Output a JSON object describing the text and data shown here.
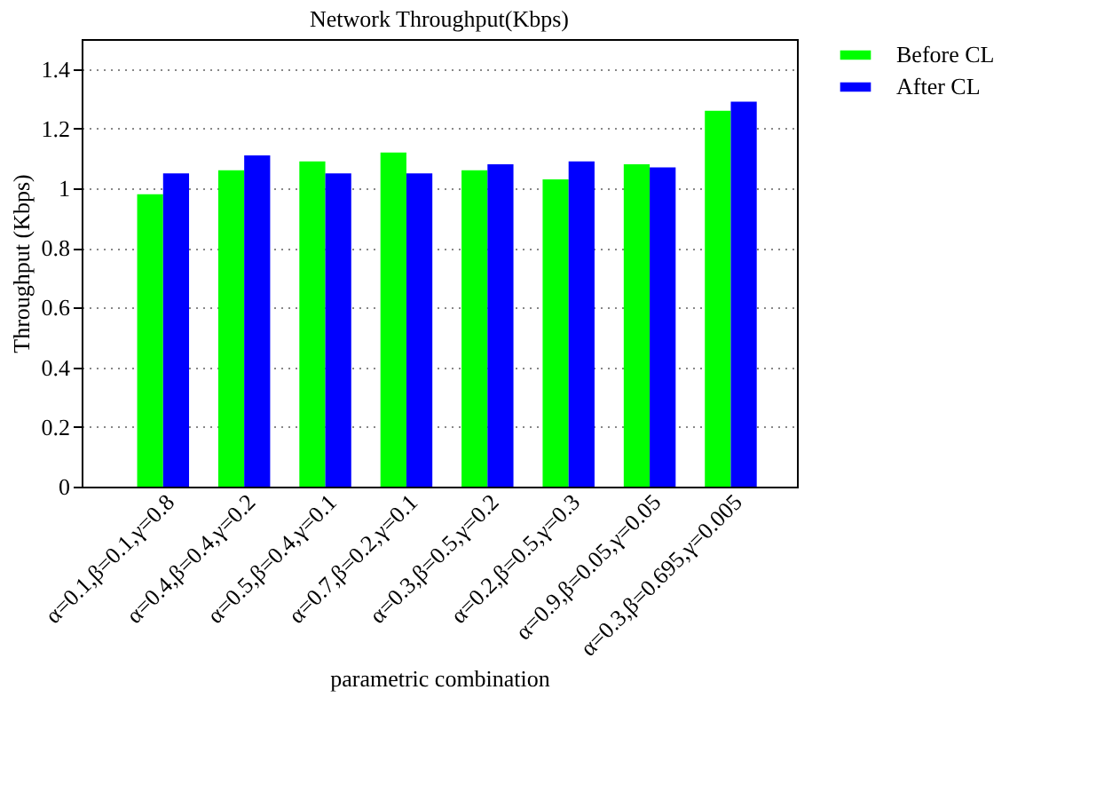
{
  "chart_data": {
    "type": "bar",
    "title": "Network Throughput(Kbps)",
    "xlabel": "parametric combination",
    "ylabel": "Throughput (Kbps)",
    "categories": [
      "α=0.1,β=0.1,γ=0.8",
      "α=0.4,β=0.4,γ=0.2",
      "α=0.5,β=0.4,γ=0.1",
      "α=0.7,β=0.2,γ=0.1",
      "α=0.3,β=0.5,γ=0.2",
      "α=0.2,β=0.5,γ=0.3",
      "α=0.9,β=0.05,γ=0.05",
      "α=0.3,β=0.695,γ=0.005"
    ],
    "series": [
      {
        "name": "Before CL",
        "color": "#00ff00",
        "values": [
          0.98,
          1.06,
          1.09,
          1.12,
          1.06,
          1.03,
          1.08,
          1.26
        ]
      },
      {
        "name": "After CL",
        "color": "#0000ff",
        "values": [
          1.05,
          1.11,
          1.05,
          1.05,
          1.08,
          1.09,
          1.07,
          1.29
        ]
      }
    ],
    "ylim": [
      0,
      1.5
    ],
    "yticks": [
      0,
      0.2,
      0.4,
      0.6,
      0.8,
      1,
      1.2,
      1.4
    ],
    "grid": "y",
    "legend": "top right"
  }
}
